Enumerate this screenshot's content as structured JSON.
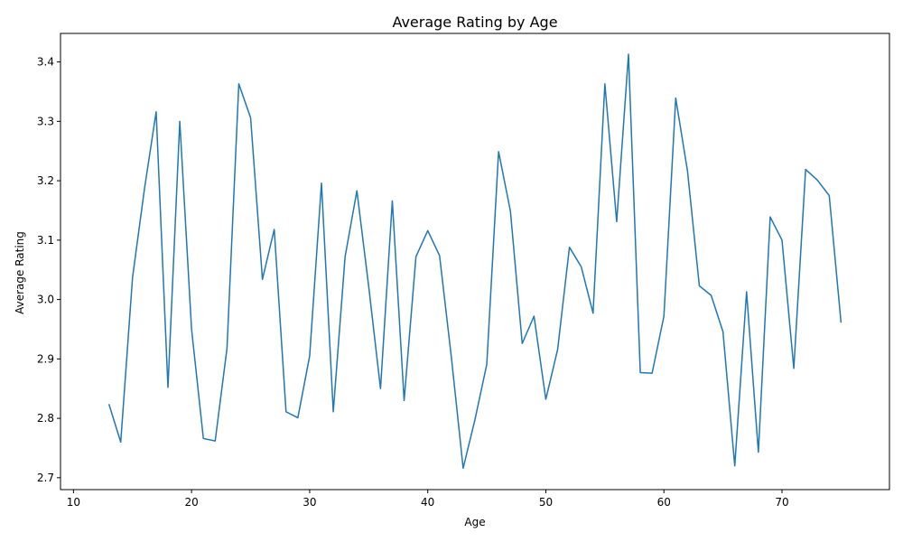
{
  "chart_data": {
    "type": "line",
    "title": "Average Rating by Age",
    "xlabel": "Age",
    "ylabel": "Average Rating",
    "xlim": [
      8.9,
      79.1
    ],
    "ylim": [
      2.68,
      3.448
    ],
    "xticks": [
      10,
      20,
      30,
      40,
      50,
      60,
      70
    ],
    "yticks": [
      2.7,
      2.8,
      2.9,
      3.0,
      3.1,
      3.2,
      3.3,
      3.4
    ],
    "grid": false,
    "color": "#1f77b4",
    "series": [
      {
        "x": [
          13,
          14,
          15,
          16,
          17,
          18,
          19,
          20,
          21,
          22,
          23,
          24,
          25,
          26,
          27,
          28,
          29,
          30,
          31,
          32,
          33,
          34,
          35,
          36,
          37,
          38,
          39,
          40,
          41,
          42,
          43,
          44,
          45,
          46,
          47,
          48,
          49,
          50,
          51,
          52,
          53,
          54,
          55,
          56,
          57,
          58,
          59,
          60,
          61,
          62,
          63,
          64,
          65,
          66,
          67,
          68,
          69,
          70,
          71,
          72,
          73,
          74,
          75
        ],
        "y": [
          2.824,
          2.76,
          3.037,
          3.185,
          3.316,
          2.852,
          3.3,
          2.95,
          2.766,
          2.762,
          2.918,
          3.363,
          3.306,
          3.034,
          3.118,
          2.811,
          2.801,
          2.905,
          3.196,
          2.811,
          3.072,
          3.183,
          3.022,
          2.85,
          3.166,
          2.83,
          3.072,
          3.116,
          3.074,
          2.903,
          2.716,
          2.798,
          2.891,
          3.249,
          3.149,
          2.926,
          2.972,
          2.832,
          2.916,
          3.088,
          3.055,
          2.977,
          3.363,
          3.131,
          3.413,
          2.877,
          2.876,
          2.972,
          3.339,
          3.216,
          3.023,
          3.007,
          2.946,
          2.72,
          3.013,
          2.743,
          3.139,
          3.1,
          2.884,
          3.219,
          3.201,
          3.175,
          2.961
        ]
      }
    ]
  }
}
